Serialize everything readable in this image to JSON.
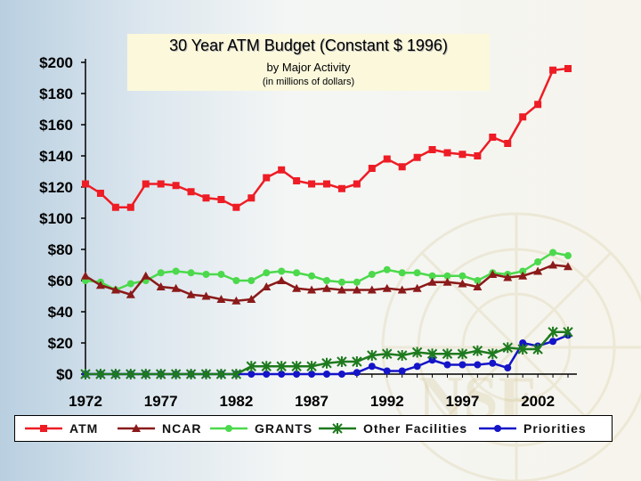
{
  "title": {
    "main": "30 Year ATM Budget (Constant $ 1996)",
    "sub1": "by Major Activity",
    "sub2": "(in millions of dollars)"
  },
  "watermark_text": "NSF",
  "chart_data": {
    "type": "line",
    "title": "30 Year ATM Budget (Constant $ 1996)",
    "subtitle": "by Major Activity (in millions of dollars)",
    "x": [
      1972,
      1973,
      1974,
      1975,
      1976,
      1977,
      1978,
      1979,
      1980,
      1981,
      1982,
      1983,
      1984,
      1985,
      1986,
      1987,
      1988,
      1989,
      1990,
      1991,
      1992,
      1993,
      1994,
      1995,
      1996,
      1997,
      1998,
      1999,
      2000,
      2001,
      2002,
      2003,
      2004
    ],
    "x_ticks": [
      1972,
      1977,
      1982,
      1987,
      1992,
      1997,
      2002
    ],
    "x_tick_labels": [
      "1972",
      "1977",
      "1982",
      "1987",
      "1992",
      "1997",
      "2002"
    ],
    "y_ticks": [
      0,
      20,
      40,
      60,
      80,
      100,
      120,
      140,
      160,
      180,
      200
    ],
    "y_tick_labels": [
      "$0",
      "$20",
      "$40",
      "$60",
      "$80",
      "$100",
      "$120",
      "$140",
      "$160",
      "$180",
      "$200"
    ],
    "ylim": [
      0,
      200
    ],
    "grid": false,
    "legend_position": "bottom",
    "series": [
      {
        "name": "ATM",
        "color": "#ee1c25",
        "marker": "square",
        "values": [
          122,
          116,
          107,
          107,
          122,
          122,
          121,
          117,
          113,
          112,
          107,
          113,
          126,
          131,
          124,
          122,
          122,
          119,
          122,
          132,
          138,
          133,
          139,
          144,
          142,
          141,
          140,
          152,
          148,
          165,
          173,
          195,
          196
        ]
      },
      {
        "name": "NCAR",
        "color": "#8b1a1a",
        "marker": "triangle",
        "values": [
          63,
          57,
          54,
          51,
          63,
          56,
          55,
          51,
          50,
          48,
          47,
          48,
          56,
          60,
          55,
          54,
          55,
          54,
          54,
          54,
          55,
          54,
          55,
          59,
          59,
          58,
          56,
          64,
          62,
          63,
          66,
          70,
          69
        ]
      },
      {
        "name": "GRANTS",
        "color": "#4cd94c",
        "marker": "circle",
        "values": [
          60,
          59,
          54,
          58,
          60,
          65,
          66,
          65,
          64,
          64,
          60,
          60,
          65,
          66,
          65,
          63,
          60,
          59,
          59,
          64,
          67,
          65,
          65,
          63,
          63,
          63,
          60,
          65,
          64,
          66,
          72,
          78,
          76
        ]
      },
      {
        "name": "Other Facilities",
        "color": "#1e7a1e",
        "marker": "asterisk",
        "values": [
          0,
          0,
          0,
          0,
          0,
          0,
          0,
          0,
          0,
          0,
          0,
          5,
          5,
          5,
          5,
          5,
          7,
          8,
          8,
          12,
          13,
          12,
          14,
          13,
          13,
          13,
          15,
          13,
          17,
          16,
          16,
          27,
          27
        ]
      },
      {
        "name": "Priorities",
        "color": "#1414c8",
        "marker": "circle",
        "values": [
          0,
          0,
          0,
          0,
          0,
          0,
          0,
          0,
          0,
          0,
          0,
          0,
          0,
          0,
          0,
          0,
          0,
          0,
          1,
          5,
          2,
          2,
          5,
          9,
          6,
          6,
          6,
          7,
          4,
          20,
          18,
          21,
          25
        ]
      }
    ]
  }
}
